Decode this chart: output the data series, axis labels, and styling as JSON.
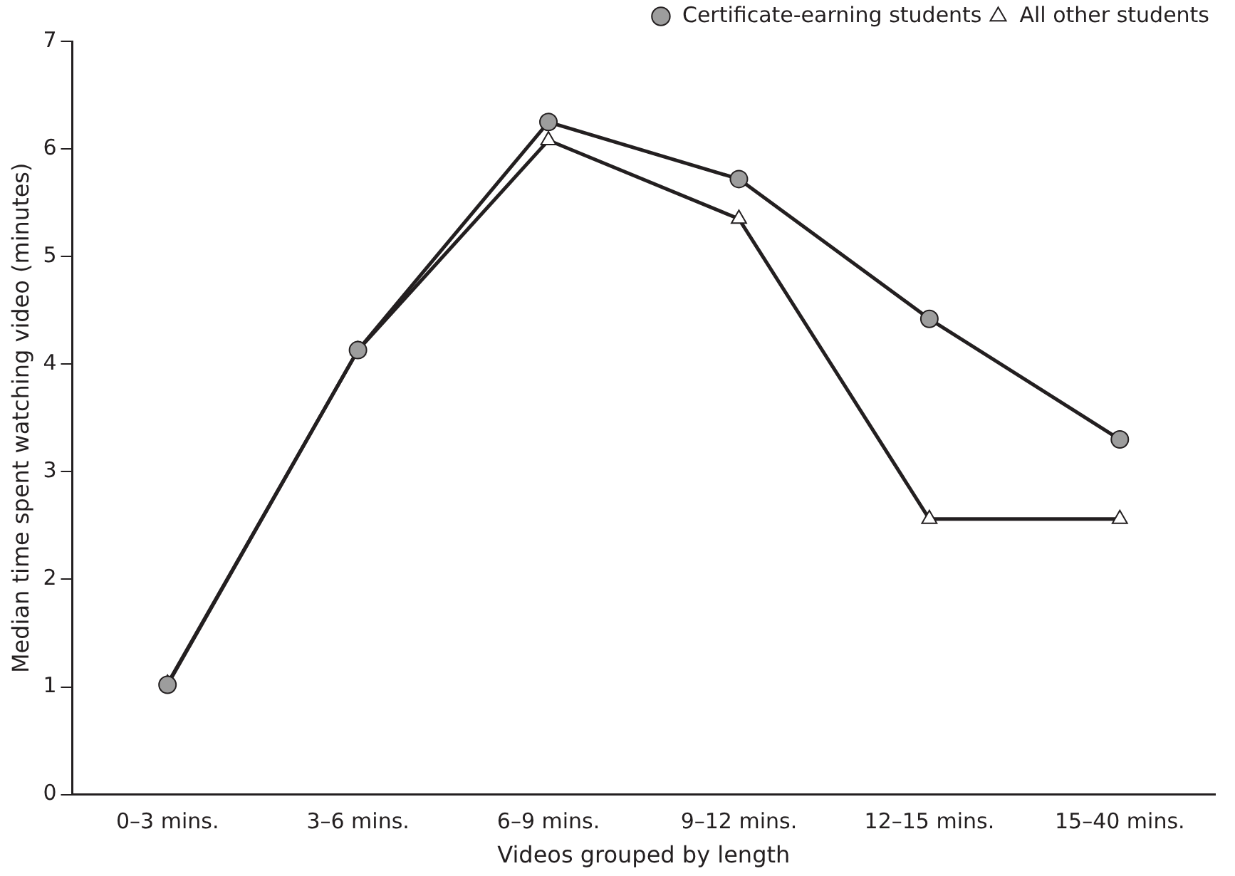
{
  "chart_data": {
    "type": "line",
    "xlabel": "Videos grouped by length",
    "ylabel": "Median time spent watching video (minutes)",
    "categories": [
      "0–3 mins.",
      "3–6 mins.",
      "6–9 mins.",
      "9–12 mins.",
      "12–15 mins.",
      "15–40 mins."
    ],
    "series": [
      {
        "name": "Certificate-earning students",
        "color": "#231f20",
        "marker": "circle",
        "values": [
          1.02,
          4.13,
          6.25,
          5.72,
          4.42,
          3.3
        ]
      },
      {
        "name": "All other students",
        "color": "#231f20",
        "marker": "triangle",
        "values": [
          1.03,
          4.13,
          6.08,
          5.35,
          2.56,
          2.56
        ]
      }
    ],
    "ylim": [
      0,
      7
    ],
    "yticks": [
      0,
      1,
      2,
      3,
      4,
      5,
      6,
      7
    ],
    "grid": false,
    "legend": "top right",
    "line_style": "solid"
  }
}
